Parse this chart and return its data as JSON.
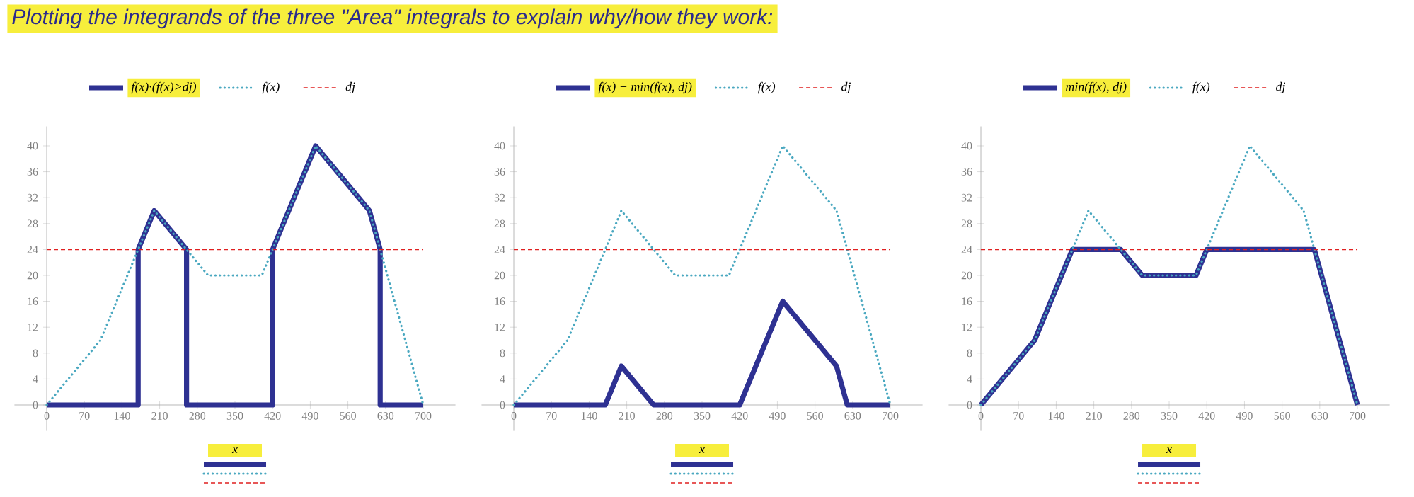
{
  "chart_data": [
    {
      "type": "line",
      "title": "Plotting the integrands of the three \"Area\" integrals to explain why/how they work:",
      "xlabel": "x",
      "legend": "top",
      "xlim": [
        -60,
        760
      ],
      "ylim": [
        -4,
        43
      ],
      "xticks": [
        0,
        70,
        140,
        210,
        280,
        350,
        420,
        490,
        560,
        630,
        700
      ],
      "yticks": [
        0,
        4,
        8,
        12,
        16,
        20,
        24,
        28,
        32,
        36,
        40
      ],
      "series": [
        {
          "name": "f(x)·(f(x)>dj)",
          "color": "#2e3192",
          "line_style": "solid",
          "x": [
            0,
            170,
            170,
            200,
            260,
            260,
            420,
            420,
            500,
            600,
            620,
            620,
            700
          ],
          "values": [
            0,
            0,
            24,
            30,
            24,
            0,
            0,
            24,
            40,
            30,
            24,
            0,
            0
          ]
        },
        {
          "name": "f(x)",
          "color": "#4aa8c0",
          "line_style": "dotted",
          "x": [
            0,
            100,
            200,
            300,
            400,
            500,
            600,
            700
          ],
          "values": [
            0,
            10,
            30,
            20,
            20,
            40,
            30,
            0
          ]
        },
        {
          "name": "dj",
          "color": "#e02020",
          "line_style": "dashed",
          "x": [
            0,
            700
          ],
          "values": [
            24,
            24
          ]
        }
      ]
    },
    {
      "type": "line",
      "xlabel": "x",
      "legend": "top",
      "xlim": [
        -60,
        760
      ],
      "ylim": [
        -4,
        43
      ],
      "xticks": [
        0,
        70,
        140,
        210,
        280,
        350,
        420,
        490,
        560,
        630,
        700
      ],
      "yticks": [
        0,
        4,
        8,
        12,
        16,
        20,
        24,
        28,
        32,
        36,
        40
      ],
      "series": [
        {
          "name": "f(x) − min(f(x), dj)",
          "color": "#2e3192",
          "line_style": "solid",
          "x": [
            0,
            170,
            200,
            260,
            420,
            500,
            600,
            620,
            700
          ],
          "values": [
            0,
            0,
            6,
            0,
            0,
            16,
            6,
            0,
            0
          ]
        },
        {
          "name": "f(x)",
          "color": "#4aa8c0",
          "line_style": "dotted",
          "x": [
            0,
            100,
            200,
            300,
            400,
            500,
            600,
            700
          ],
          "values": [
            0,
            10,
            30,
            20,
            20,
            40,
            30,
            0
          ]
        },
        {
          "name": "dj",
          "color": "#e02020",
          "line_style": "dashed",
          "x": [
            0,
            700
          ],
          "values": [
            24,
            24
          ]
        }
      ]
    },
    {
      "type": "line",
      "xlabel": "x",
      "legend": "top",
      "xlim": [
        -60,
        760
      ],
      "ylim": [
        -4,
        43
      ],
      "xticks": [
        0,
        70,
        140,
        210,
        280,
        350,
        420,
        490,
        560,
        630,
        700
      ],
      "yticks": [
        0,
        4,
        8,
        12,
        16,
        20,
        24,
        28,
        32,
        36,
        40
      ],
      "series": [
        {
          "name": "min(f(x), dj)",
          "color": "#2e3192",
          "line_style": "solid",
          "x": [
            0,
            100,
            170,
            260,
            300,
            400,
            420,
            620,
            700
          ],
          "values": [
            0,
            10,
            24,
            24,
            20,
            20,
            24,
            24,
            0
          ]
        },
        {
          "name": "f(x)",
          "color": "#4aa8c0",
          "line_style": "dotted",
          "x": [
            0,
            100,
            200,
            300,
            400,
            500,
            600,
            700
          ],
          "values": [
            0,
            10,
            30,
            20,
            20,
            40,
            30,
            0
          ]
        },
        {
          "name": "dj",
          "color": "#e02020",
          "line_style": "dashed",
          "x": [
            0,
            700
          ],
          "values": [
            24,
            24
          ]
        }
      ]
    }
  ]
}
